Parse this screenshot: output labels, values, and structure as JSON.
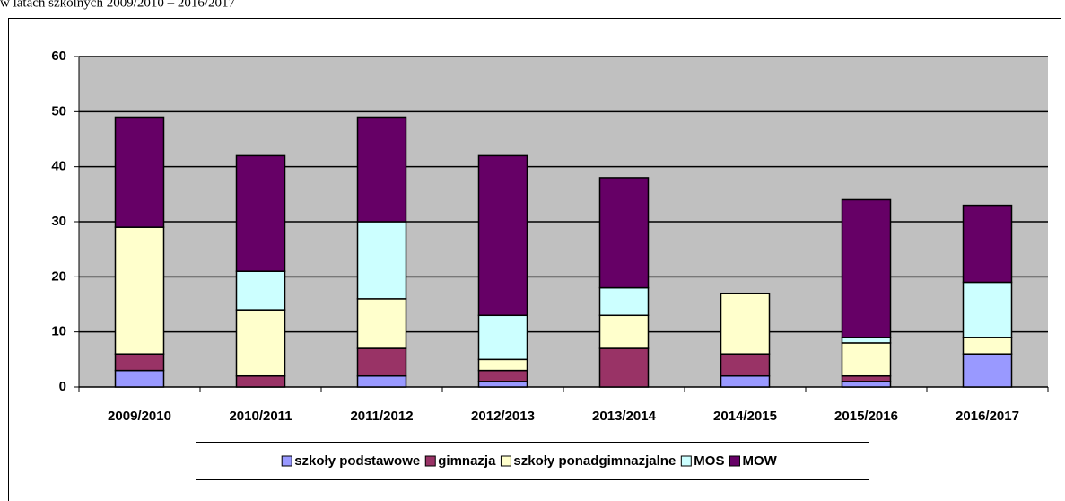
{
  "chart_data": {
    "type": "stacked_bar",
    "title": "w latach szkolnych 2009/2010 – 2016/2017",
    "categories": [
      "2009/2010",
      "2010/2011",
      "2011/2012",
      "2012/2013",
      "2013/2014",
      "2014/2015",
      "2015/2016",
      "2016/2017"
    ],
    "series": [
      {
        "name": "szkoły podstawowe",
        "color": "#9999ff",
        "values": [
          3,
          0,
          2,
          1,
          0,
          2,
          1,
          6
        ]
      },
      {
        "name": "gimnazja",
        "color": "#993366",
        "values": [
          3,
          2,
          5,
          2,
          7,
          4,
          1,
          0
        ]
      },
      {
        "name": "szkoły ponadgimnazjalne",
        "color": "#ffffcc",
        "values": [
          23,
          12,
          9,
          2,
          6,
          11,
          6,
          3
        ]
      },
      {
        "name": "MOS",
        "color": "#ccffff",
        "values": [
          0,
          7,
          14,
          8,
          5,
          0,
          1,
          10
        ]
      },
      {
        "name": "MOW",
        "color": "#660066",
        "values": [
          20,
          21,
          19,
          29,
          20,
          0,
          25,
          14
        ]
      }
    ],
    "ylim": [
      0,
      60
    ],
    "yticks": [
      0,
      10,
      20,
      30,
      40,
      50,
      60
    ],
    "grid": true,
    "legend": "bottom"
  }
}
